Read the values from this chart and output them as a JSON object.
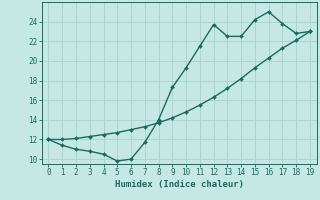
{
  "xlabel": "Humidex (Indice chaleur)",
  "background_color": "#c5e8e5",
  "grid_color": "#aed4d0",
  "line_color": "#1a6b5e",
  "x_curve": [
    0,
    1,
    2,
    3,
    4,
    5,
    6,
    7,
    8,
    9,
    10,
    11,
    12,
    13,
    14,
    15,
    16,
    17,
    18,
    19
  ],
  "y_curve": [
    12.0,
    11.4,
    11.0,
    10.8,
    10.5,
    9.8,
    10.0,
    11.7,
    14.0,
    17.3,
    19.3,
    21.5,
    23.7,
    22.5,
    22.5,
    24.2,
    25.0,
    23.8,
    22.8,
    23.0
  ],
  "x_line": [
    0,
    1,
    2,
    3,
    4,
    5,
    6,
    7,
    8,
    9,
    10,
    11,
    12,
    13,
    14,
    15,
    16,
    17,
    18,
    19
  ],
  "y_line": [
    12.0,
    12.0,
    12.1,
    12.3,
    12.5,
    12.7,
    13.0,
    13.3,
    13.7,
    14.2,
    14.8,
    15.5,
    16.3,
    17.2,
    18.2,
    19.3,
    20.3,
    21.3,
    22.1,
    23.0
  ],
  "ylim": [
    9.5,
    26
  ],
  "xlim": [
    -0.5,
    19.5
  ],
  "yticks": [
    10,
    12,
    14,
    16,
    18,
    20,
    22,
    24
  ],
  "xticks": [
    0,
    1,
    2,
    3,
    4,
    5,
    6,
    7,
    8,
    9,
    10,
    11,
    12,
    13,
    14,
    15,
    16,
    17,
    18,
    19
  ],
  "tick_fontsize": 5.5,
  "xlabel_fontsize": 6.5
}
